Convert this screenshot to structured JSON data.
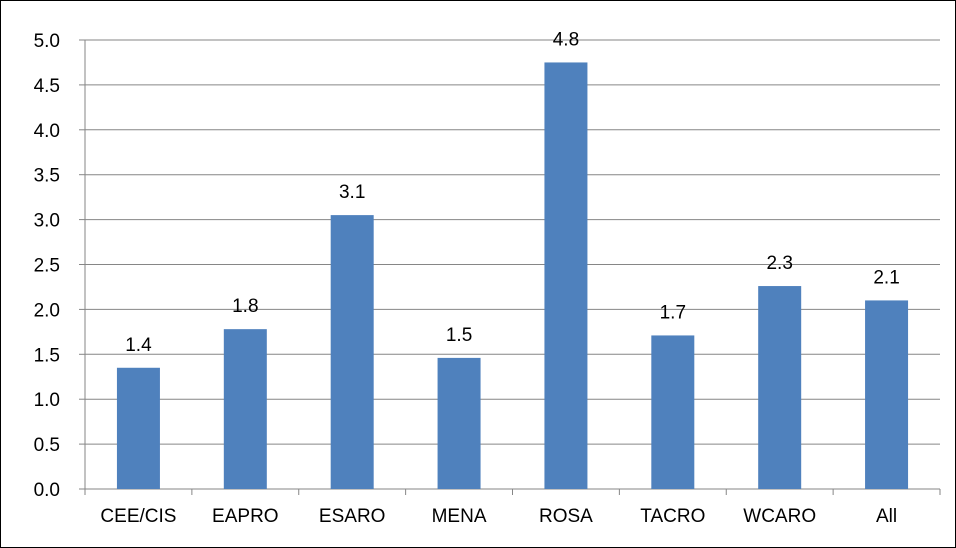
{
  "chart_data": {
    "type": "bar",
    "categories": [
      "CEE/CIS",
      "EAPRO",
      "ESARO",
      "MENA",
      "ROSA",
      "TACRO",
      "WCARO",
      "All"
    ],
    "values": [
      1.35,
      1.78,
      3.05,
      1.46,
      4.75,
      1.71,
      2.26,
      2.1
    ],
    "data_labels": [
      "1.4",
      "1.8",
      "3.1",
      "1.5",
      "4.8",
      "1.7",
      "2.3",
      "2.1"
    ],
    "y_ticks": [
      "0.0",
      "0.5",
      "1.0",
      "1.5",
      "2.0",
      "2.5",
      "3.0",
      "3.5",
      "4.0",
      "4.5",
      "5.0"
    ],
    "ylim": [
      0,
      5
    ],
    "grid": true,
    "legend": "none",
    "bar_color": "#4F81BD",
    "grid_color": "#868686"
  }
}
